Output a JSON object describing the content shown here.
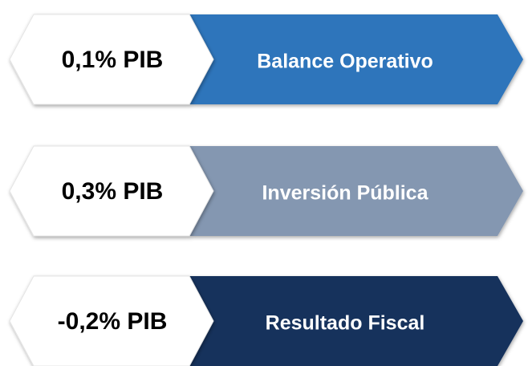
{
  "items": [
    {
      "value": "0,1% PIB",
      "label": "Balance Operativo",
      "color": "#2f75bb"
    },
    {
      "value": "0,3% PIB",
      "label": "Inversión Pública",
      "color": "#8497b1"
    },
    {
      "value": "-0,2% PIB",
      "label": "Resultado Fiscal",
      "color": "#13305b"
    }
  ]
}
